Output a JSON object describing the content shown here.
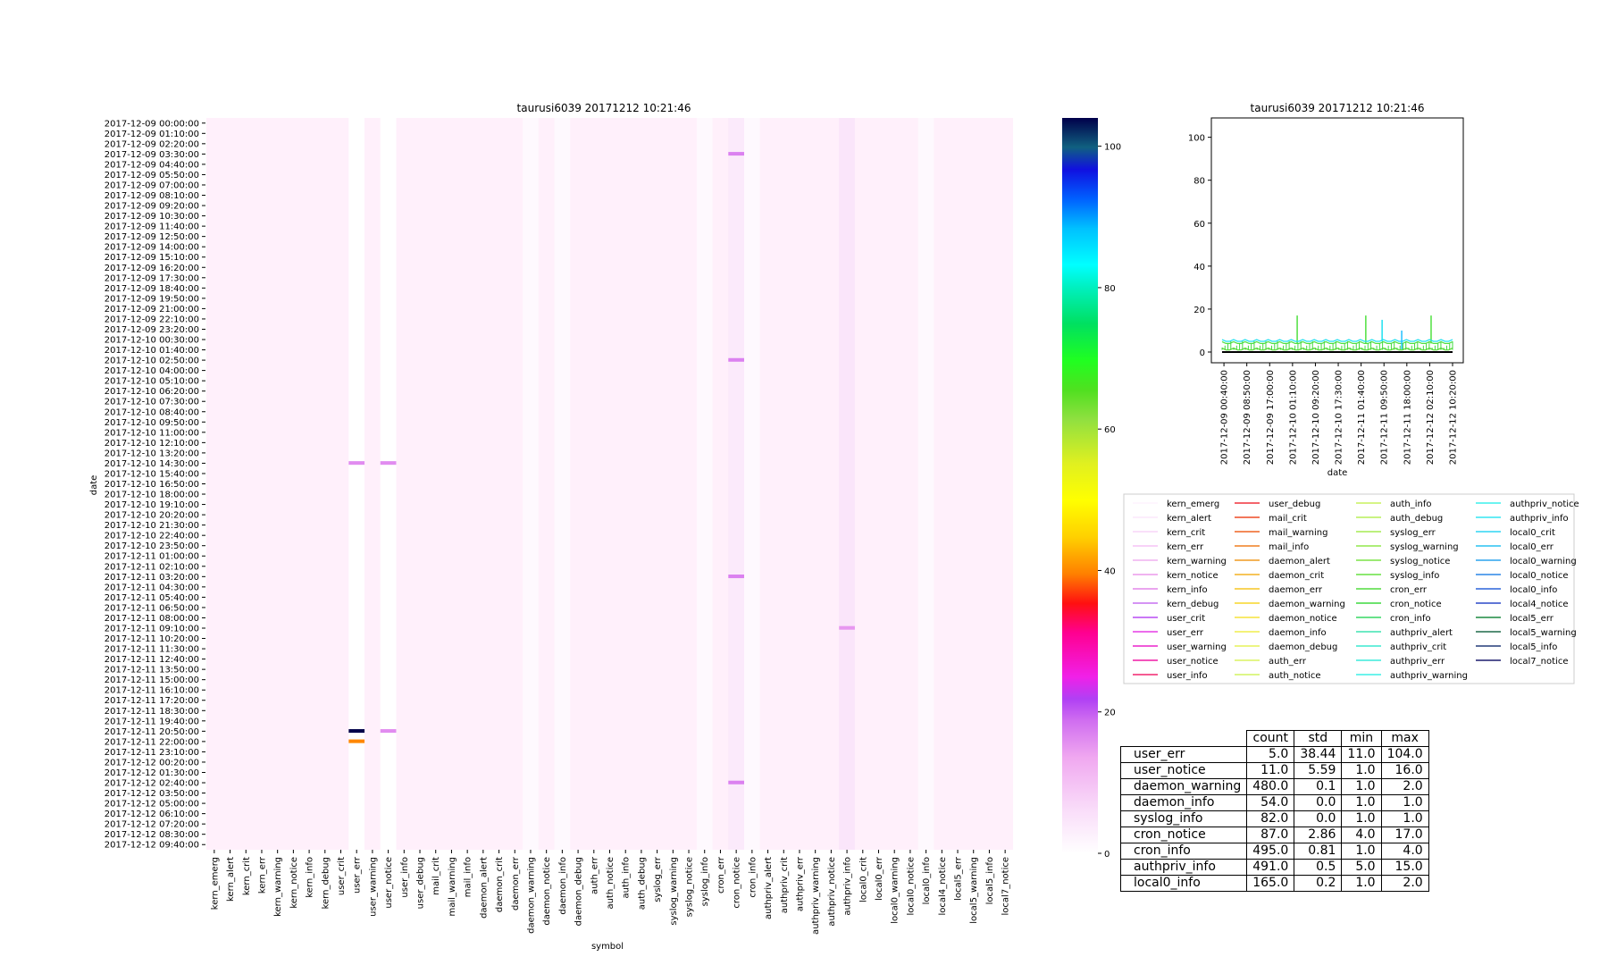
{
  "heatmap": {
    "title": "taurusi6039 20171212 10:21:46",
    "xlabel": "symbol",
    "ylabel": "date"
  },
  "colorbar": {
    "ticks": [
      0,
      20,
      40,
      60,
      80,
      100
    ],
    "range": [
      0,
      104
    ],
    "colormap": "gist_ncar_r"
  },
  "line_chart": {
    "title": "taurusi6039 20171212 10:21:46",
    "xlabel": "date",
    "yticks": [
      0,
      20,
      40,
      60,
      80,
      100
    ],
    "xticks": [
      "2017-12-09 00:40:00",
      "2017-12-09 08:50:00",
      "2017-12-09 17:00:00",
      "2017-12-10 01:10:00",
      "2017-12-10 09:20:00",
      "2017-12-10 17:30:00",
      "2017-12-11 01:40:00",
      "2017-12-11 09:50:00",
      "2017-12-11 18:00:00",
      "2017-12-12 02:10:00",
      "2017-12-12 10:20:00"
    ]
  },
  "legend": {
    "columns": [
      [
        "kern_emerg",
        "kern_alert",
        "kern_crit",
        "kern_err",
        "kern_warning",
        "kern_notice",
        "kern_info",
        "kern_debug",
        "user_crit",
        "user_err",
        "user_warning",
        "user_notice",
        "user_info"
      ],
      [
        "user_debug",
        "mail_crit",
        "mail_warning",
        "mail_info",
        "daemon_alert",
        "daemon_crit",
        "daemon_err",
        "daemon_warning",
        "daemon_notice",
        "daemon_info",
        "daemon_debug",
        "auth_err",
        "auth_notice"
      ],
      [
        "auth_info",
        "auth_debug",
        "syslog_err",
        "syslog_warning",
        "syslog_notice",
        "syslog_info",
        "cron_err",
        "cron_notice",
        "cron_info",
        "authpriv_alert",
        "authpriv_crit",
        "authpriv_err",
        "authpriv_warning"
      ],
      [
        "authpriv_notice",
        "authpriv_info",
        "local0_crit",
        "local0_err",
        "local0_warning",
        "local0_notice",
        "local0_info",
        "local4_notice",
        "local5_err",
        "local5_warning",
        "local5_info",
        "local7_notice"
      ]
    ],
    "colors": [
      [
        "#fdf3fd",
        "#fce7fc",
        "#f9d6f9",
        "#f5c3f5",
        "#f1b0f1",
        "#ec9aec",
        "#e387ea",
        "#c770f0",
        "#b84cf4",
        "#e53ce6",
        "#ec24cc",
        "#ef1aa5",
        "#f2256f"
      ],
      [
        "#f0303c",
        "#ee4a25",
        "#ef6422",
        "#f07f20",
        "#f19a20",
        "#f3b222",
        "#f5c624",
        "#f7d628",
        "#f6e43a",
        "#f0ee4c",
        "#e6f25a",
        "#dcf460",
        "#d2f360"
      ],
      [
        "#c8f25e",
        "#b7ef58",
        "#a6ec52",
        "#92e84c",
        "#7be446",
        "#66e040",
        "#50dc3e",
        "#3dd83e",
        "#36d964",
        "#3de4b0",
        "#3ce8d0",
        "#3cecdc",
        "#3cefe6"
      ],
      [
        "#3cf0ec",
        "#34e6f2",
        "#2ed6f4",
        "#28c2f2",
        "#2aa4ee",
        "#2b86e6",
        "#2c64da",
        "#2b48c8",
        "#1d8a40",
        "#1e6a48",
        "#243c78",
        "#1c1c6e"
      ]
    ]
  },
  "chart_data": [
    {
      "type": "heatmap",
      "title": "taurusi6039 20171212 10:21:46",
      "xlabel": "symbol",
      "ylabel": "date",
      "columns": [
        "kern_emerg",
        "kern_alert",
        "kern_crit",
        "kern_err",
        "kern_warning",
        "kern_notice",
        "kern_info",
        "kern_debug",
        "user_crit",
        "user_err",
        "user_warning",
        "user_notice",
        "user_info",
        "user_debug",
        "mail_crit",
        "mail_warning",
        "mail_info",
        "daemon_alert",
        "daemon_crit",
        "daemon_err",
        "daemon_warning",
        "daemon_notice",
        "daemon_info",
        "daemon_debug",
        "auth_err",
        "auth_notice",
        "auth_info",
        "auth_debug",
        "syslog_err",
        "syslog_warning",
        "syslog_notice",
        "syslog_info",
        "cron_err",
        "cron_notice",
        "cron_info",
        "authpriv_alert",
        "authpriv_crit",
        "authpriv_err",
        "authpriv_warning",
        "authpriv_notice",
        "authpriv_info",
        "local0_crit",
        "local0_err",
        "local0_warning",
        "local0_notice",
        "local0_info",
        "local4_notice",
        "local5_err",
        "local5_warning",
        "local5_info",
        "local7_notice"
      ],
      "row_labels": [
        "2017-12-09 00:00:00",
        "2017-12-09 01:10:00",
        "2017-12-09 02:20:00",
        "2017-12-09 03:30:00",
        "2017-12-09 04:40:00",
        "2017-12-09 05:50:00",
        "2017-12-09 07:00:00",
        "2017-12-09 08:10:00",
        "2017-12-09 09:20:00",
        "2017-12-09 10:30:00",
        "2017-12-09 11:40:00",
        "2017-12-09 12:50:00",
        "2017-12-09 14:00:00",
        "2017-12-09 15:10:00",
        "2017-12-09 16:20:00",
        "2017-12-09 17:30:00",
        "2017-12-09 18:40:00",
        "2017-12-09 19:50:00",
        "2017-12-09 21:00:00",
        "2017-12-09 22:10:00",
        "2017-12-09 23:20:00",
        "2017-12-10 00:30:00",
        "2017-12-10 01:40:00",
        "2017-12-10 02:50:00",
        "2017-12-10 04:00:00",
        "2017-12-10 05:10:00",
        "2017-12-10 06:20:00",
        "2017-12-10 07:30:00",
        "2017-12-10 08:40:00",
        "2017-12-10 09:50:00",
        "2017-12-10 11:00:00",
        "2017-12-10 12:10:00",
        "2017-12-10 13:20:00",
        "2017-12-10 14:30:00",
        "2017-12-10 15:40:00",
        "2017-12-10 16:50:00",
        "2017-12-10 18:00:00",
        "2017-12-10 19:10:00",
        "2017-12-10 20:20:00",
        "2017-12-10 21:30:00",
        "2017-12-10 22:40:00",
        "2017-12-10 23:50:00",
        "2017-12-11 01:00:00",
        "2017-12-11 02:10:00",
        "2017-12-11 03:20:00",
        "2017-12-11 04:30:00",
        "2017-12-11 05:40:00",
        "2017-12-11 06:50:00",
        "2017-12-11 08:00:00",
        "2017-12-11 09:10:00",
        "2017-12-11 10:20:00",
        "2017-12-11 11:30:00",
        "2017-12-11 12:40:00",
        "2017-12-11 13:50:00",
        "2017-12-11 15:00:00",
        "2017-12-11 16:10:00",
        "2017-12-11 17:20:00",
        "2017-12-11 18:30:00",
        "2017-12-11 19:40:00",
        "2017-12-11 20:50:00",
        "2017-12-11 22:00:00",
        "2017-12-11 23:10:00",
        "2017-12-12 00:20:00",
        "2017-12-12 01:30:00",
        "2017-12-12 02:40:00",
        "2017-12-12 03:50:00",
        "2017-12-12 05:00:00",
        "2017-12-12 06:10:00",
        "2017-12-12 07:20:00",
        "2017-12-12 08:30:00",
        "2017-12-12 09:40:00"
      ],
      "value_range": [
        0,
        104
      ],
      "colormap": "gist_ncar_r",
      "notable_cells": [
        {
          "column": "user_err",
          "date": "2017-12-10 14:30:00",
          "value": 16
        },
        {
          "column": "user_notice",
          "date": "2017-12-10 14:30:00",
          "value": 16
        },
        {
          "column": "user_err",
          "date": "2017-12-11 20:50:00",
          "value": 104
        },
        {
          "column": "user_err",
          "date": "2017-12-11 22:00:00",
          "value": 40
        },
        {
          "column": "user_notice",
          "date": "2017-12-11 20:50:00",
          "value": 16
        },
        {
          "column": "cron_notice",
          "date": "2017-12-09 03:30:00",
          "value": 17
        },
        {
          "column": "cron_notice",
          "date": "2017-12-10 02:50:00",
          "value": 17
        },
        {
          "column": "cron_notice",
          "date": "2017-12-11 03:20:00",
          "value": 17
        },
        {
          "column": "cron_notice",
          "date": "2017-12-12 02:40:00",
          "value": 17
        },
        {
          "column": "authpriv_info",
          "date": "2017-12-11 09:10:00",
          "value": 15
        }
      ],
      "baseline_values": {
        "daemon_warning": 1,
        "daemon_info": 1,
        "syslog_info": 1,
        "cron_notice": 4,
        "cron_info": 1,
        "authpriv_info": 5,
        "local0_info": 1
      }
    },
    {
      "type": "line",
      "title": "taurusi6039 20171212 10:21:46",
      "xlabel": "date",
      "x_range": [
        "2017-12-09 00:00:00",
        "2017-12-12 10:20:00"
      ],
      "ylim": [
        -5,
        109
      ],
      "xticks": [
        "2017-12-09 00:40:00",
        "2017-12-09 08:50:00",
        "2017-12-09 17:00:00",
        "2017-12-10 01:10:00",
        "2017-12-10 09:20:00",
        "2017-12-10 17:30:00",
        "2017-12-11 01:40:00",
        "2017-12-11 09:50:00",
        "2017-12-11 18:00:00",
        "2017-12-12 02:10:00",
        "2017-12-12 10:20:00"
      ],
      "series": [
        {
          "name": "cron_notice",
          "baseline": 4,
          "spikes": [
            {
              "x": "2017-12-10 02:50:00",
              "y": 17
            },
            {
              "x": "2017-12-11 03:20:00",
              "y": 17
            },
            {
              "x": "2017-12-12 02:40:00",
              "y": 17
            }
          ]
        },
        {
          "name": "authpriv_info",
          "baseline": 5,
          "spikes": [
            {
              "x": "2017-12-11 09:10:00",
              "y": 15
            }
          ]
        },
        {
          "name": "local0_notice",
          "baseline": 1,
          "spikes": [
            {
              "x": "2017-12-11 16:10:00",
              "y": 10
            }
          ]
        },
        {
          "name": "cron_info",
          "baseline": 1,
          "spikes": []
        },
        {
          "name": "daemon_warning",
          "baseline": 1,
          "spikes": []
        },
        {
          "name": "syslog_info",
          "baseline": 1,
          "spikes": []
        }
      ]
    },
    {
      "type": "table",
      "columns": [
        "count",
        "std",
        "min",
        "max"
      ],
      "rows": [
        {
          "name": "user_err",
          "values": [
            "5.0",
            "38.44",
            "11.0",
            "104.0"
          ]
        },
        {
          "name": "user_notice",
          "values": [
            "11.0",
            "5.59",
            "1.0",
            "16.0"
          ]
        },
        {
          "name": "daemon_warning",
          "values": [
            "480.0",
            "0.1",
            "1.0",
            "2.0"
          ]
        },
        {
          "name": "daemon_info",
          "values": [
            "54.0",
            "0.0",
            "1.0",
            "1.0"
          ]
        },
        {
          "name": "syslog_info",
          "values": [
            "82.0",
            "0.0",
            "1.0",
            "1.0"
          ]
        },
        {
          "name": "cron_notice",
          "values": [
            "87.0",
            "2.86",
            "4.0",
            "17.0"
          ]
        },
        {
          "name": "cron_info",
          "values": [
            "495.0",
            "0.81",
            "1.0",
            "4.0"
          ]
        },
        {
          "name": "authpriv_info",
          "values": [
            "491.0",
            "0.5",
            "5.0",
            "15.0"
          ]
        },
        {
          "name": "local0_info",
          "values": [
            "165.0",
            "0.2",
            "1.0",
            "2.0"
          ]
        }
      ]
    }
  ]
}
